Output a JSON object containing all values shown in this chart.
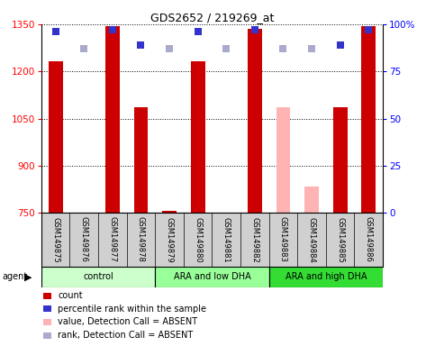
{
  "title": "GDS2652 / 219269_at",
  "samples": [
    "GSM149875",
    "GSM149876",
    "GSM149877",
    "GSM149878",
    "GSM149879",
    "GSM149880",
    "GSM149881",
    "GSM149882",
    "GSM149883",
    "GSM149884",
    "GSM149885",
    "GSM149886"
  ],
  "count_values": [
    1232,
    null,
    1344,
    1085,
    755,
    1232,
    null,
    1336,
    null,
    null,
    1085,
    1344
  ],
  "count_absent": [
    false,
    false,
    false,
    false,
    false,
    false,
    false,
    false,
    true,
    true,
    false,
    false
  ],
  "absent_count_values": [
    null,
    null,
    null,
    null,
    null,
    null,
    null,
    null,
    1085,
    835,
    null,
    null
  ],
  "rank_values": [
    96,
    null,
    97,
    89,
    null,
    96,
    null,
    97,
    null,
    null,
    89,
    97
  ],
  "rank_absent_values": [
    null,
    87,
    null,
    null,
    87,
    null,
    87,
    null,
    87,
    87,
    null,
    null
  ],
  "bar_color_present": "#cc0000",
  "bar_color_absent": "#ffb3b3",
  "dot_color_present": "#3333cc",
  "dot_color_absent": "#aaaacc",
  "ylim_left": [
    750,
    1350
  ],
  "ylim_right": [
    0,
    100
  ],
  "yticks_left": [
    750,
    900,
    1050,
    1200,
    1350
  ],
  "yticks_right": [
    0,
    25,
    50,
    75,
    100
  ],
  "groups": [
    {
      "label": "control",
      "start": 0,
      "end": 3,
      "color": "#ccffcc"
    },
    {
      "label": "ARA and low DHA",
      "start": 4,
      "end": 7,
      "color": "#99ff99"
    },
    {
      "label": "ARA and high DHA",
      "start": 8,
      "end": 11,
      "color": "#33dd33"
    }
  ],
  "legend_items": [
    {
      "label": "count",
      "color": "#cc0000"
    },
    {
      "label": "percentile rank within the sample",
      "color": "#3333cc"
    },
    {
      "label": "value, Detection Call = ABSENT",
      "color": "#ffb3b3"
    },
    {
      "label": "rank, Detection Call = ABSENT",
      "color": "#aaaacc"
    }
  ],
  "agent_label": "agent"
}
